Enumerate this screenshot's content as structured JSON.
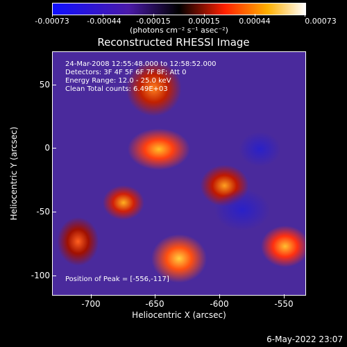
{
  "colorbar": {
    "tick_labels": [
      "-0.00073",
      "-0.00044",
      "-0.00015",
      "0.00015",
      "0.00044",
      "0.00073"
    ],
    "units": "(photons cm⁻² s⁻¹ asec⁻²)"
  },
  "title": "Reconstructed RHESSI Image",
  "info": {
    "time_range": "24-Mar-2008 12:55:48.000 to 12:58:52.000",
    "detectors": "Detectors: 3F 4F 5F 6F 7F 8F; Att 0",
    "energy": "Energy Range: 12.0 - 25.0 keV",
    "algorithm": "Clean    Total counts: 6.49E+03",
    "peak": "Position of Peak = [-556,-117]"
  },
  "axes": {
    "xlabel": "Heliocentric X (arcsec)",
    "ylabel": "Heliocentric Y (arcsec)",
    "xticks": [
      "-700",
      "-650",
      "-600",
      "-550"
    ],
    "yticks": [
      "50",
      "0",
      "-50",
      "-100"
    ]
  },
  "datestamp": "6-May-2022 23:07"
}
